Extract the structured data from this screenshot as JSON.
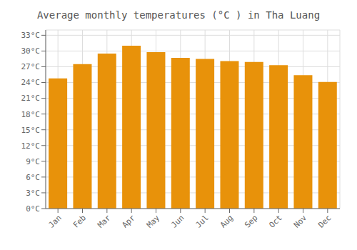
{
  "chart_data": {
    "type": "bar",
    "title": "Average monthly temperatures (°C ) in Tha Luang",
    "categories": [
      "Jan",
      "Feb",
      "Mar",
      "Apr",
      "May",
      "Jun",
      "Jul",
      "Aug",
      "Sep",
      "Oct",
      "Nov",
      "Dec"
    ],
    "values": [
      24.8,
      27.5,
      29.5,
      31.0,
      29.8,
      28.7,
      28.5,
      28.1,
      27.9,
      27.3,
      25.4,
      24.1
    ],
    "color": "#E8920A",
    "ylim": [
      0,
      34
    ],
    "yticks": [
      {
        "value": 0,
        "label": "0°C"
      },
      {
        "value": 3,
        "label": "3°C"
      },
      {
        "value": 6,
        "label": "6°C"
      },
      {
        "value": 9,
        "label": "9°C"
      },
      {
        "value": 12,
        "label": "12°C"
      },
      {
        "value": 15,
        "label": "15°C"
      },
      {
        "value": 18,
        "label": "18°C"
      },
      {
        "value": 21,
        "label": "21°C"
      },
      {
        "value": 24,
        "label": "24°C"
      },
      {
        "value": 27,
        "label": "27°C"
      },
      {
        "value": 30,
        "label": "30°C"
      },
      {
        "value": 33,
        "label": "33°C"
      }
    ],
    "grid": true
  }
}
